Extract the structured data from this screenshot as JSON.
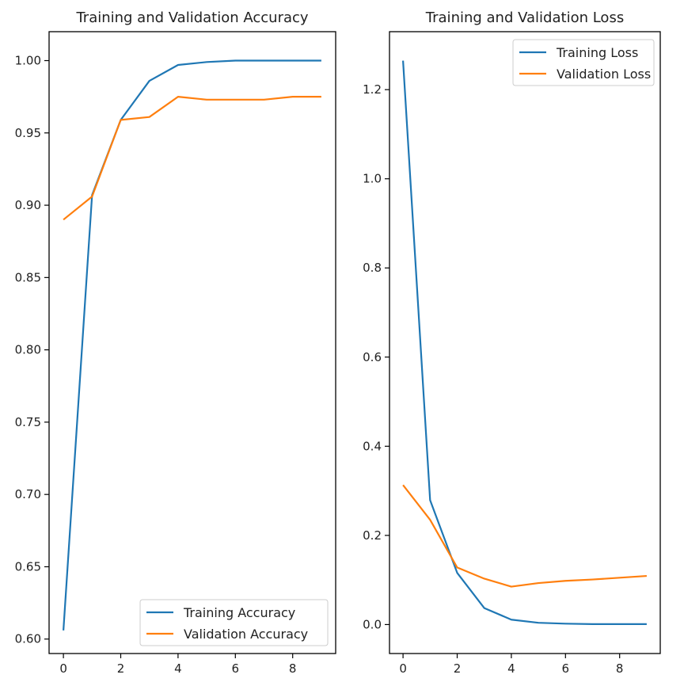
{
  "chart_data": [
    {
      "type": "line",
      "title": "Training and Validation Accuracy",
      "xlabel": "",
      "ylabel": "",
      "x": [
        0,
        1,
        2,
        3,
        4,
        5,
        6,
        7,
        8,
        9
      ],
      "xlim": [
        -0.5,
        9.5
      ],
      "ylim": [
        0.59,
        1.02
      ],
      "xticks": [
        0,
        2,
        4,
        6,
        8
      ],
      "yticks": [
        0.6,
        0.65,
        0.7,
        0.75,
        0.8,
        0.85,
        0.9,
        0.95,
        1.0
      ],
      "ytick_labels": [
        "0.60",
        "0.65",
        "0.70",
        "0.75",
        "0.80",
        "0.85",
        "0.90",
        "0.95",
        "1.00"
      ],
      "legend_position": "lower-right",
      "grid": false,
      "series": [
        {
          "name": "Training Accuracy",
          "color": "#1f77b4",
          "values": [
            0.606,
            0.907,
            0.959,
            0.986,
            0.997,
            0.999,
            1.0,
            1.0,
            1.0,
            1.0
          ]
        },
        {
          "name": "Validation Accuracy",
          "color": "#ff7f0e",
          "values": [
            0.89,
            0.906,
            0.959,
            0.961,
            0.975,
            0.973,
            0.973,
            0.973,
            0.975,
            0.975
          ]
        }
      ]
    },
    {
      "type": "line",
      "title": "Training and Validation Loss",
      "xlabel": "",
      "ylabel": "",
      "x": [
        0,
        1,
        2,
        3,
        4,
        5,
        6,
        7,
        8,
        9
      ],
      "xlim": [
        -0.5,
        9.5
      ],
      "ylim": [
        -0.065,
        1.33
      ],
      "xticks": [
        0,
        2,
        4,
        6,
        8
      ],
      "yticks": [
        0.0,
        0.2,
        0.4,
        0.6,
        0.8,
        1.0,
        1.2
      ],
      "ytick_labels": [
        "0.0",
        "0.2",
        "0.4",
        "0.6",
        "0.8",
        "1.0",
        "1.2"
      ],
      "legend_position": "upper-right",
      "grid": false,
      "series": [
        {
          "name": "Training Loss",
          "color": "#1f77b4",
          "values": [
            1.265,
            0.279,
            0.116,
            0.037,
            0.011,
            0.004,
            0.002,
            0.001,
            0.001,
            0.001
          ]
        },
        {
          "name": "Validation Loss",
          "color": "#ff7f0e",
          "values": [
            0.313,
            0.235,
            0.128,
            0.103,
            0.085,
            0.093,
            0.098,
            0.101,
            0.105,
            0.109
          ]
        }
      ]
    }
  ]
}
